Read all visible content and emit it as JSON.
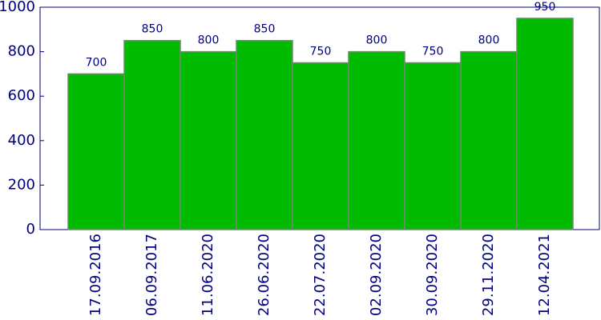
{
  "chart_data": {
    "type": "bar",
    "categories": [
      "17.09.2016",
      "06.09.2017",
      "11.06.2020",
      "26.06.2020",
      "22.07.2020",
      "02.09.2020",
      "30.09.2020",
      "29.11.2020",
      "12.04.2021"
    ],
    "values": [
      700,
      850,
      800,
      850,
      750,
      800,
      750,
      800,
      950
    ],
    "color": "#00bb00",
    "ylim": [
      0,
      1000
    ],
    "yticks": [
      0,
      200,
      400,
      600,
      800,
      1000
    ],
    "grid": false
  }
}
